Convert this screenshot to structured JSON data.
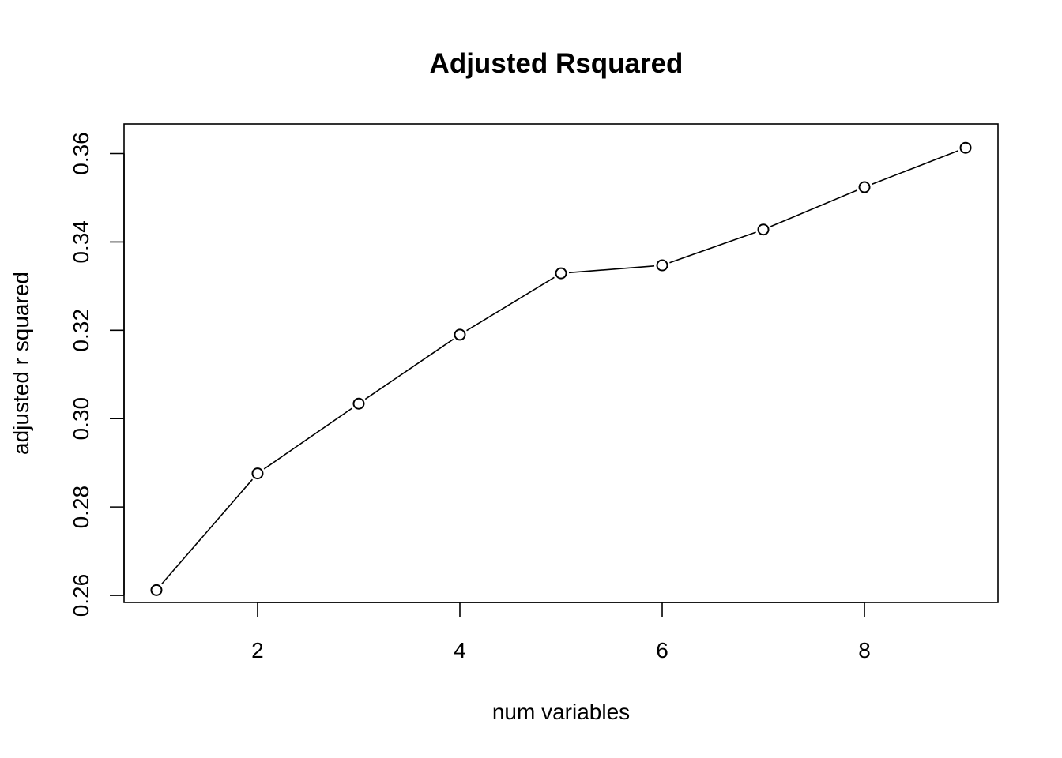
{
  "chart_data": {
    "type": "line",
    "title": "Adjusted Rsquared",
    "xlabel": "num variables",
    "ylabel": "adjusted r squared",
    "x": [
      1,
      2,
      3,
      4,
      5,
      6,
      7,
      8,
      9
    ],
    "series": [
      {
        "values": [
          0.2612,
          0.2876,
          0.3034,
          0.319,
          0.3329,
          0.3347,
          0.3428,
          0.3524,
          0.3613
        ]
      }
    ],
    "xlim": [
      0.68,
      9.32
    ],
    "ylim": [
      0.2584,
      0.3667
    ],
    "x_ticks": [
      "2",
      "4",
      "6",
      "8"
    ],
    "y_ticks": [
      "0.26",
      "0.28",
      "0.30",
      "0.32",
      "0.34",
      "0.36"
    ],
    "grid": false,
    "legend": "none",
    "marker": "open-circle",
    "line_color": "#000000"
  }
}
